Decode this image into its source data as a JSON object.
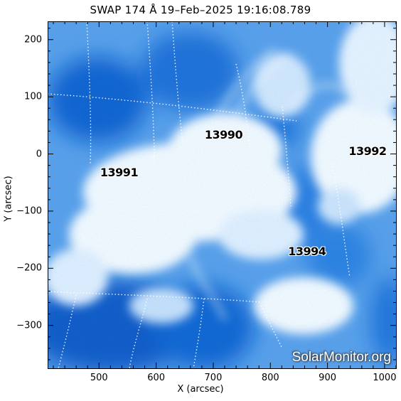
{
  "title": "SWAP 174 Å 19–Feb–2025 19:16:08.789",
  "axes": {
    "xlabel": "X (arcsec)",
    "ylabel": "Y (arcsec)",
    "xlim": [
      410,
      1020
    ],
    "ylim": [
      -375,
      232
    ],
    "xticks": [
      "500",
      "600",
      "700",
      "800",
      "900",
      "1000"
    ],
    "yticks": [
      "200",
      "100",
      "0",
      "−100",
      "−200",
      "−300"
    ]
  },
  "regions": [
    {
      "number": "13990",
      "x": 718,
      "y": 34
    },
    {
      "number": "13991",
      "x": 535,
      "y": -32
    },
    {
      "number": "13992",
      "x": 970,
      "y": 5
    },
    {
      "number": "13994",
      "x": 864,
      "y": -170
    }
  ],
  "watermark": "SolarMonitor.org",
  "colors": {
    "deep_blue": "#0a5fcf",
    "mid_blue": "#3b8ee6",
    "light_blue": "#a9cdf6",
    "bright": "#ffffff"
  }
}
